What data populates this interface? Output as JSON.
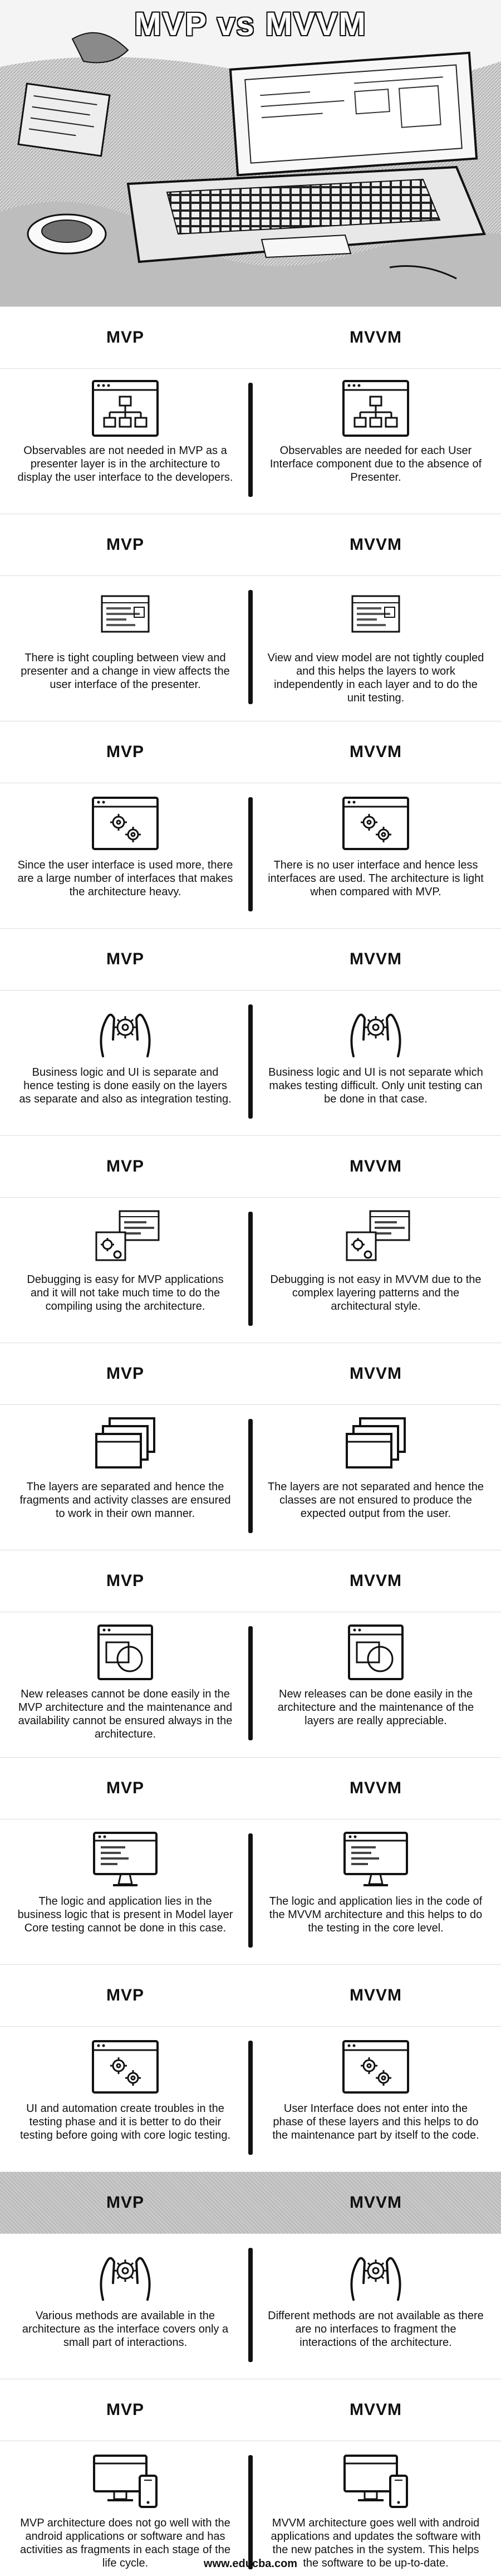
{
  "title": "MVP vs MVVM",
  "labels": {
    "left": "MVP",
    "right": "MVVM"
  },
  "rows": [
    {
      "left": "Observables are not needed in MVP as a presenter layer is in the architecture to display the user interface to the developers.",
      "right": "Observables are needed for each User Interface component due to the absence of Presenter.",
      "icon": "window-hierarchy-icon"
    },
    {
      "left": "There is tight coupling between view and presenter and a change in view affects the user interface of the presenter.",
      "right": "View and view model are not tightly coupled and this helps the layers to work independently in each layer and to do the unit testing.",
      "icon": "browser-window-icon"
    },
    {
      "left": "Since the user interface is used more, there are a large number of interfaces that makes the architecture heavy.",
      "right": "There is no user interface and hence less interfaces are used. The architecture is light when compared with MVP.",
      "icon": "gears-window-icon"
    },
    {
      "left": "Business logic and UI is separate and hence testing is done easily on the layers as separate and also as integration testing.",
      "right": "Business logic and UI is not separate which makes testing difficult. Only unit testing can be done in that case.",
      "icon": "hands-gear-icon"
    },
    {
      "left": "Debugging is easy for MVP applications and it will not take much time to do the compiling using the architecture.",
      "right": "Debugging is not easy in MVVM due to the complex layering patterns and the architectural style.",
      "icon": "debug-gears-icon"
    },
    {
      "left": "The layers are separated and hence the fragments and activity classes are ensured to work in their own manner.",
      "right": "The layers are not separated and hence the classes are not ensured to produce the expected output from the user.",
      "icon": "stacked-layers-icon"
    },
    {
      "left": "New releases cannot be done easily in the MVP architecture and the maintenance and availability cannot be ensured always in the architecture.",
      "right": "New releases can be done easily in the architecture and the maintenance of the layers are really appreciable.",
      "icon": "window-shapes-icon"
    },
    {
      "left": "The logic and application lies in the business logic that is present in Model layer Core testing cannot be done in this case.",
      "right": "The logic and application lies in the code of the MVVM architecture and this helps to do the testing in the core level.",
      "icon": "monitor-chart-icon"
    },
    {
      "left": "UI and automation create troubles in the testing phase and it is better to do their testing before going with core logic testing.",
      "right": "User Interface does not enter into the phase of these layers and this helps to do the maintenance part by itself to the code.",
      "icon": "gears-window-icon"
    },
    {
      "left": "Various methods are available in the architecture as the interface covers only a small part of interactions.",
      "right": "Different methods are not available as there are no interfaces to fragment the interactions of the architecture.",
      "icon": "hands-gear-icon"
    },
    {
      "left": "MVP architecture does not go well with the android applications or software and has activities as fragments in each stage of the life cycle.",
      "right": "MVVM architecture goes well with android applications and updates the software with the new patches in the system. This helps the software to be up-to-date.",
      "icon": "devices-icon"
    }
  ],
  "footer": "www.educba.com"
}
